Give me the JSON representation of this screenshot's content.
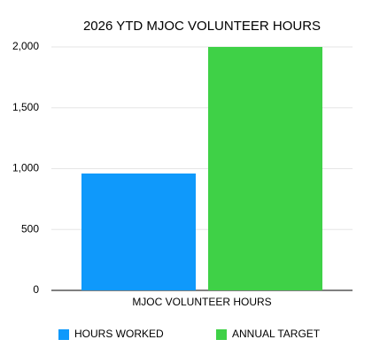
{
  "chart_data": {
    "type": "bar",
    "title": "2026 YTD MJOC VOLUNTEER HOURS",
    "categories": [
      "MJOC VOLUNTEER HOURS"
    ],
    "series": [
      {
        "name": "HOURS WORKED",
        "color": "#0f99fb",
        "values": [
          960
        ]
      },
      {
        "name": "ANNUAL TARGET",
        "color": "#3fd147",
        "values": [
          2000
        ]
      }
    ],
    "ylim": [
      0,
      2000
    ],
    "yticks": [
      0,
      500,
      {
        "value": 1000,
        "label": "1,000"
      },
      {
        "value": 1500,
        "label": "1,500"
      },
      {
        "value": 2000,
        "label": "2,000"
      }
    ],
    "grid": true,
    "legend": "bottom"
  }
}
